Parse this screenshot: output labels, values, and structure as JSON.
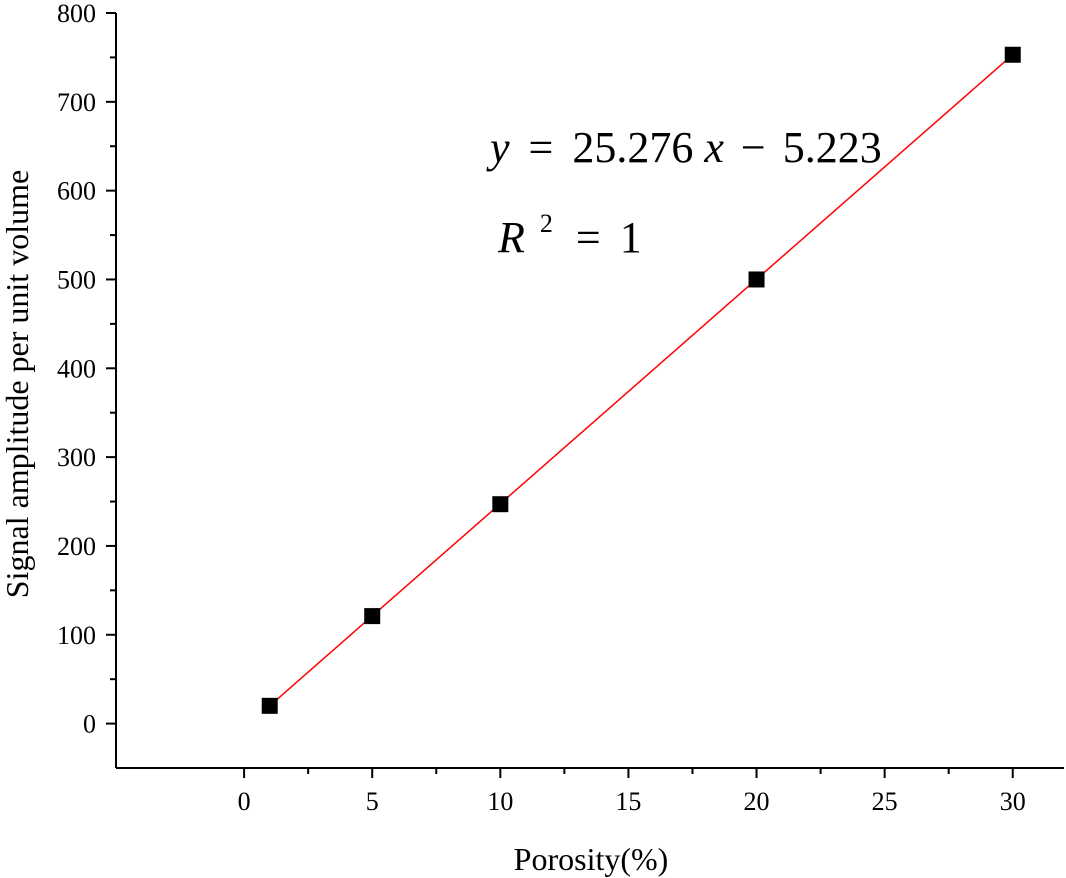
{
  "chart_data": {
    "type": "scatter",
    "title": "",
    "xlabel": "Porosity(%)",
    "ylabel": "Signal amplitude per unit volume",
    "xlim": [
      -5,
      32
    ],
    "ylim": [
      -50,
      800
    ],
    "xticks": [
      0,
      5,
      10,
      15,
      20,
      25,
      30
    ],
    "yticks": [
      0,
      100,
      200,
      300,
      400,
      500,
      600,
      700,
      800
    ],
    "grid": false,
    "legend": "none",
    "series": [
      {
        "marker": "square",
        "color": "#000000",
        "x": [
          1,
          5,
          10,
          20,
          30
        ],
        "y": [
          20,
          121,
          247,
          500,
          753
        ]
      }
    ],
    "fit": {
      "slope": 25.276,
      "intercept": -5.223,
      "x_range": [
        1,
        30
      ],
      "color": "#ff0000"
    },
    "annotations": {
      "equation": {
        "y": "y",
        "eq": "=",
        "body": "25.276",
        "x": "x",
        "minus": "−",
        "const": "5.223"
      },
      "r2": {
        "R": "R",
        "sup": "2",
        "eq": "=",
        "val": "1"
      }
    }
  }
}
